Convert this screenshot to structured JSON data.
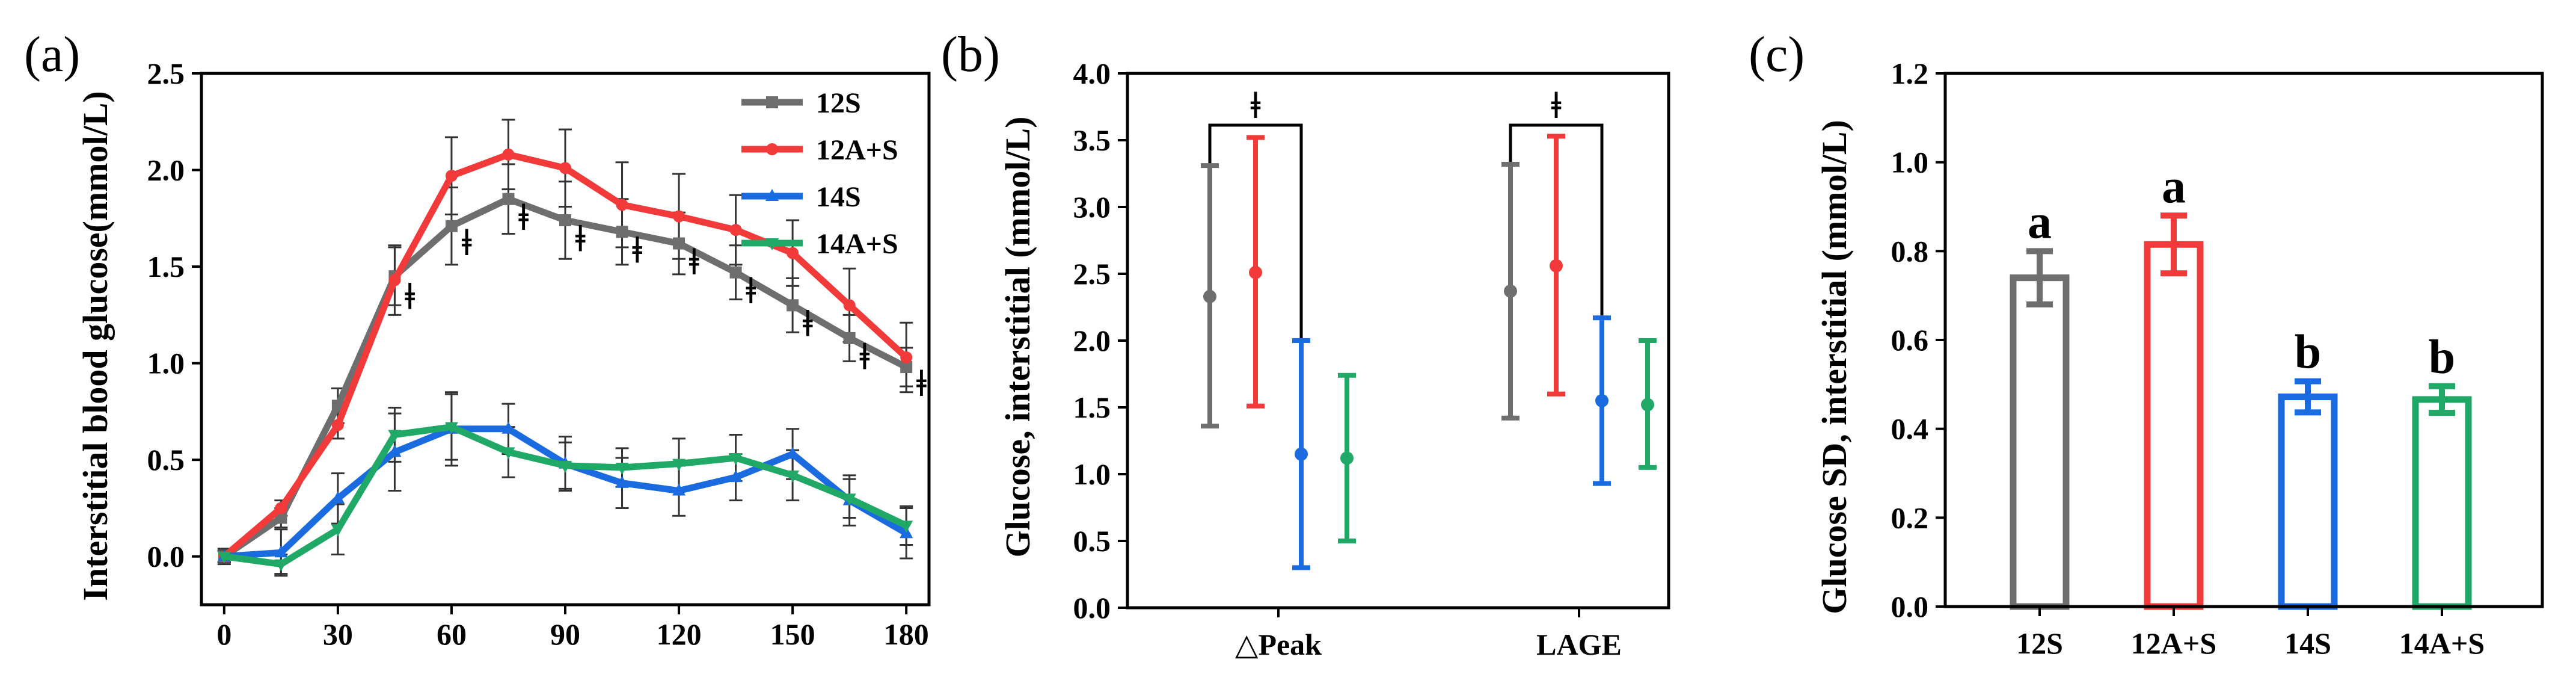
{
  "colors": {
    "12S": "#6e6e6e",
    "12A+S": "#f23a3a",
    "14S": "#1a6be0",
    "14A+S": "#1fa866"
  },
  "chart_data": [
    {
      "panel": "(a)",
      "type": "line",
      "xlabel": "",
      "ylabel": "Interstitial blood glucose(mmol/L)",
      "xlim": [
        -6,
        186
      ],
      "ylim": [
        -0.25,
        2.5
      ],
      "xticks": [
        0,
        30,
        60,
        90,
        120,
        150,
        180
      ],
      "yticks": [
        0.0,
        0.5,
        1.0,
        1.5,
        2.0,
        2.5
      ],
      "ytick_labels": [
        "0.0",
        "0.5",
        "1.0",
        "1.5",
        "2.0",
        "2.5"
      ],
      "legend_position": "top-right",
      "x": [
        0,
        15,
        30,
        45,
        60,
        75,
        90,
        105,
        120,
        135,
        150,
        165,
        180
      ],
      "series": [
        {
          "name": "12S",
          "marker": "square",
          "values": [
            0,
            0.2,
            0.78,
            1.45,
            1.71,
            1.85,
            1.74,
            1.68,
            1.62,
            1.47,
            1.3,
            1.13,
            0.98
          ],
          "errors": [
            0.03,
            0.05,
            0.09,
            0.15,
            0.2,
            0.18,
            0.2,
            0.17,
            0.16,
            0.14,
            0.14,
            0.12,
            0.1
          ]
        },
        {
          "name": "12A+S",
          "marker": "circle",
          "values": [
            0,
            0.25,
            0.68,
            1.43,
            1.97,
            2.08,
            2.01,
            1.82,
            1.76,
            1.69,
            1.57,
            1.3,
            1.03
          ],
          "errors": [
            0.03,
            0.04,
            0.07,
            0.18,
            0.2,
            0.18,
            0.2,
            0.22,
            0.22,
            0.18,
            0.17,
            0.19,
            0.18
          ]
        },
        {
          "name": "14S",
          "marker": "triangle-up",
          "values": [
            0,
            0.02,
            0.3,
            0.54,
            0.66,
            0.66,
            0.48,
            0.38,
            0.34,
            0.41,
            0.53,
            0.29,
            0.12
          ],
          "errors": [
            0.04,
            0.12,
            0.13,
            0.2,
            0.19,
            0.13,
            0.14,
            0.13,
            0.13,
            0.12,
            0.13,
            0.13,
            0.13
          ]
        },
        {
          "name": "14A+S",
          "marker": "triangle-down",
          "values": [
            0,
            -0.04,
            0.14,
            0.63,
            0.67,
            0.54,
            0.47,
            0.46,
            0.48,
            0.51,
            0.42,
            0.3,
            0.16
          ],
          "errors": [
            0.03,
            0.05,
            0.13,
            0.14,
            0.17,
            0.13,
            0.12,
            0.1,
            0.13,
            0.12,
            0.13,
            0.1,
            0.1
          ]
        }
      ],
      "annotations": [
        {
          "text": "ǂ",
          "x": 49,
          "y": 1.28
        },
        {
          "text": "ǂ",
          "x": 64,
          "y": 1.56
        },
        {
          "text": "ǂ",
          "x": 79,
          "y": 1.69
        },
        {
          "text": "ǂ",
          "x": 94,
          "y": 1.58
        },
        {
          "text": "ǂ",
          "x": 109,
          "y": 1.52
        },
        {
          "text": "ǂ",
          "x": 124,
          "y": 1.46
        },
        {
          "text": "ǂ",
          "x": 139,
          "y": 1.31
        },
        {
          "text": "ǂ",
          "x": 154,
          "y": 1.14
        },
        {
          "text": "ǂ",
          "x": 169,
          "y": 0.97
        },
        {
          "text": "ǂ",
          "x": 184,
          "y": 0.83
        }
      ]
    },
    {
      "panel": "(b)",
      "type": "scatter",
      "ylabel": "Glucose, interstitial (mmol/L)",
      "ylim": [
        0.0,
        4.0
      ],
      "yticks": [
        0.0,
        0.5,
        1.0,
        1.5,
        2.0,
        2.5,
        3.0,
        3.5,
        4.0
      ],
      "ytick_labels": [
        "0.0",
        "0.5",
        "1.0",
        "1.5",
        "2.0",
        "2.5",
        "3.0",
        "3.5",
        "4.0"
      ],
      "categories": [
        "△Peak",
        "LAGE"
      ],
      "series": [
        {
          "name": "12S",
          "values": [
            2.33,
            2.37
          ],
          "low": [
            1.36,
            1.42
          ],
          "high": [
            3.31,
            3.32
          ]
        },
        {
          "name": "12A+S",
          "values": [
            2.51,
            2.56
          ],
          "low": [
            1.51,
            1.6
          ],
          "high": [
            3.52,
            3.53
          ]
        },
        {
          "name": "14S",
          "values": [
            1.15,
            1.55
          ],
          "low": [
            0.3,
            0.93
          ],
          "high": [
            2.0,
            2.17
          ]
        },
        {
          "name": "14A+S",
          "values": [
            1.12,
            1.52
          ],
          "low": [
            0.5,
            1.05
          ],
          "high": [
            1.74,
            2.0
          ]
        }
      ],
      "significance": [
        {
          "category": "△Peak",
          "text": "ǂ"
        },
        {
          "category": "LAGE",
          "text": "ǂ"
        }
      ]
    },
    {
      "panel": "(c)",
      "type": "bar",
      "ylabel": "Glucose SD, interstitial (mmol/L)",
      "ylim": [
        0.0,
        1.2
      ],
      "yticks": [
        0.0,
        0.2,
        0.4,
        0.6,
        0.8,
        1.0,
        1.2
      ],
      "ytick_labels": [
        "0.0",
        "0.2",
        "0.4",
        "0.6",
        "0.8",
        "1.0",
        "1.2"
      ],
      "categories": [
        "12S",
        "12A+S",
        "14S",
        "14A+S"
      ],
      "values": [
        0.74,
        0.815,
        0.472,
        0.466
      ],
      "errors": [
        0.06,
        0.065,
        0.035,
        0.03
      ],
      "letters": [
        "a",
        "a",
        "b",
        "b"
      ]
    }
  ]
}
